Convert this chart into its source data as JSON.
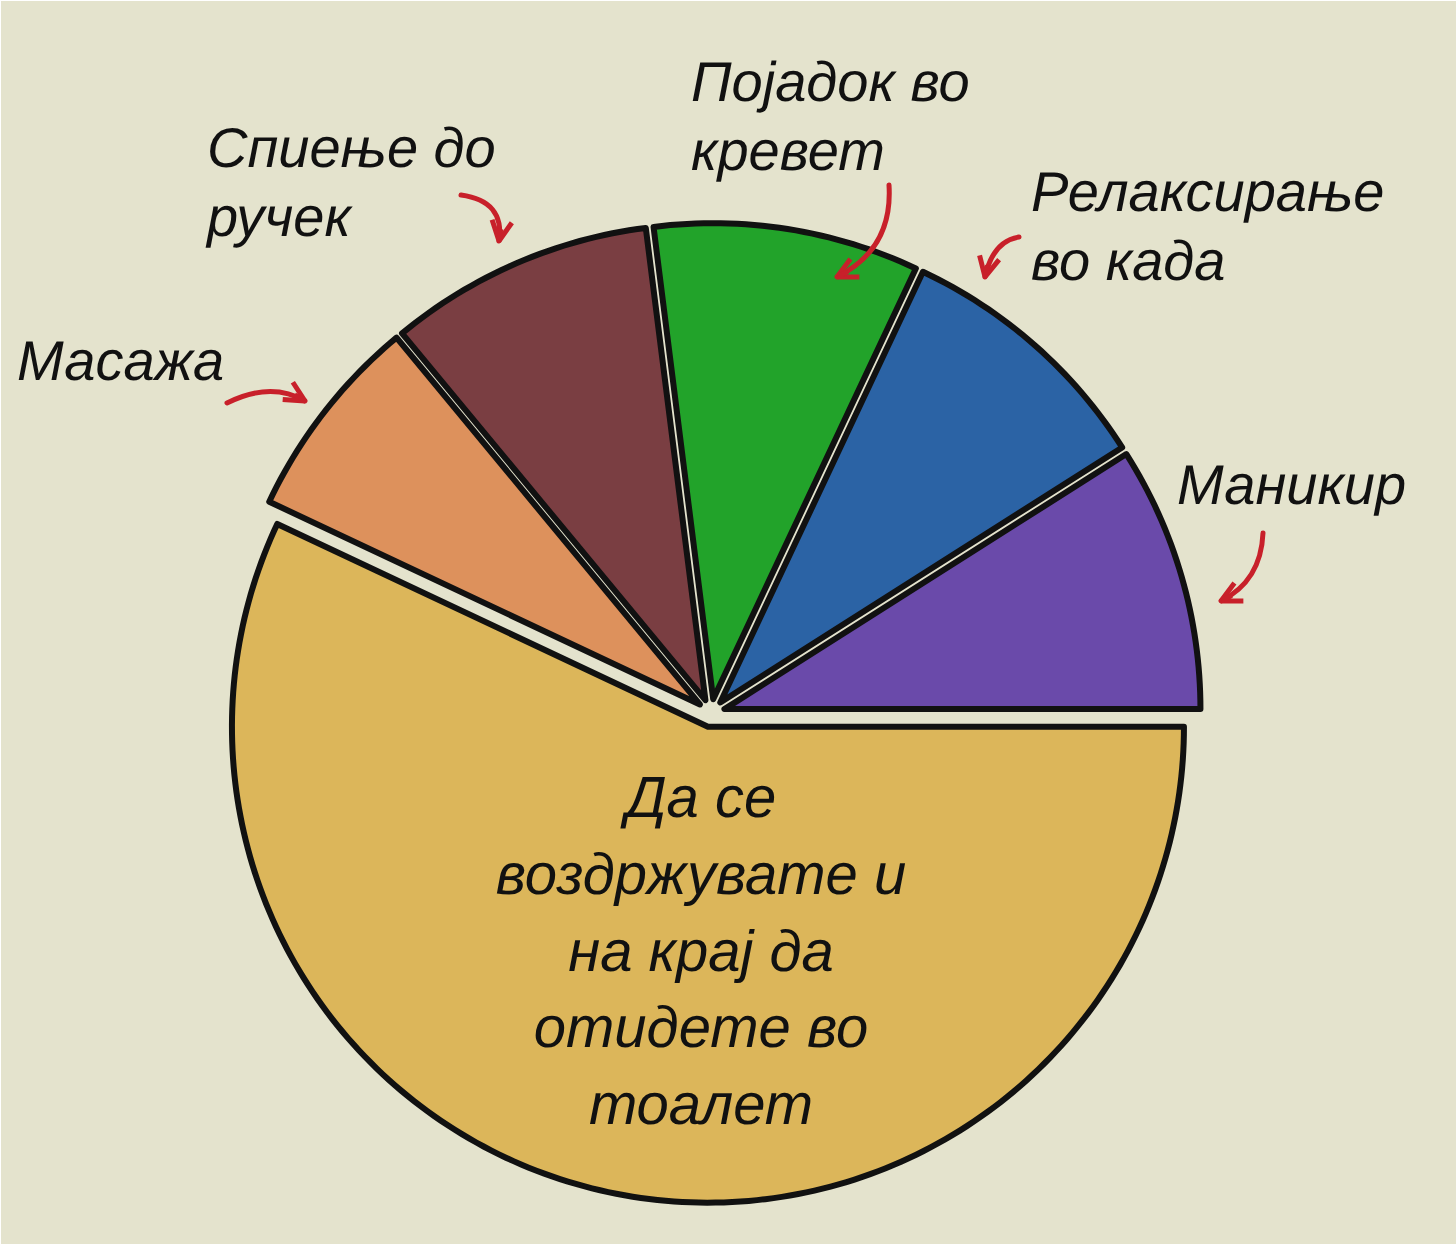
{
  "chart_data": {
    "type": "pie",
    "categories": [
      "Маникир",
      "Релаксирање во када",
      "Појадок во кревет",
      "Спиење до ручек",
      "Масажа",
      "Да се воздржувате и на крај да отидете во тоалет"
    ],
    "values": [
      9,
      9,
      9,
      9,
      7,
      57
    ],
    "colors": [
      "#6a4aaa",
      "#2b63a5",
      "#22a32a",
      "#7a3e42",
      "#dd915c",
      "#dcb65a"
    ]
  }
}
